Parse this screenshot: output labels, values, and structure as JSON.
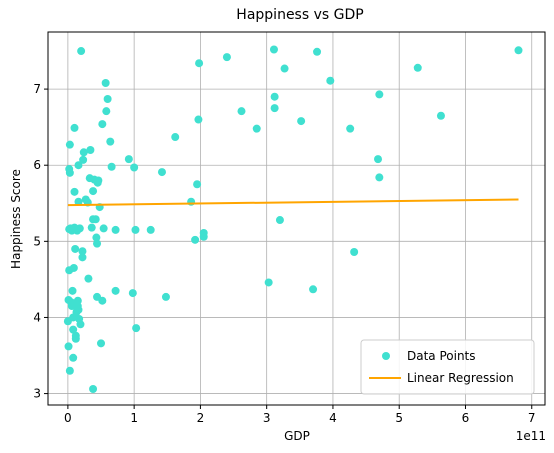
{
  "chart_data": {
    "type": "scatter",
    "title": "Happiness vs GDP",
    "xlabel": "GDP",
    "ylabel": "Happiness Score",
    "x_multiplier_label": "1e11",
    "xlim": [
      -30000000000.0,
      720000000000.0
    ],
    "ylim": [
      2.85,
      7.75
    ],
    "x_ticks": [
      0,
      1,
      2,
      3,
      4,
      5,
      6,
      7
    ],
    "x_tick_values": [
      0,
      100000000000.0,
      200000000000.0,
      300000000000.0,
      400000000000.0,
      500000000000.0,
      600000000000.0,
      700000000000.0
    ],
    "y_ticks": [
      3,
      4,
      5,
      6,
      7
    ],
    "grid": true,
    "legend_position": "lower-right",
    "colors": {
      "points": "#40e0d0",
      "line": "#ffa500",
      "grid": "#b0b0b0"
    },
    "series": [
      {
        "name": "Data Points",
        "kind": "scatter",
        "points": [
          [
            0.0,
            3.95
          ],
          [
            1000000000.0,
            4.23
          ],
          [
            1000000000.0,
            3.62
          ],
          [
            2000000000.0,
            4.62
          ],
          [
            2000000000.0,
            5.95
          ],
          [
            2000000000.0,
            5.16
          ],
          [
            3000000000.0,
            6.27
          ],
          [
            3000000000.0,
            5.9
          ],
          [
            3000000000.0,
            3.3
          ],
          [
            4000000000.0,
            5.17
          ],
          [
            5000000000.0,
            4.2
          ],
          [
            6000000000.0,
            4.15
          ],
          [
            6000000000.0,
            5.14
          ],
          [
            7000000000.0,
            4.35
          ],
          [
            8000000000.0,
            4.0
          ],
          [
            8000000000.0,
            3.84
          ],
          [
            8000000000.0,
            3.47
          ],
          [
            9000000000.0,
            4.65
          ],
          [
            10000000000.0,
            6.49
          ],
          [
            10000000000.0,
            5.65
          ],
          [
            10000000000.0,
            5.18
          ],
          [
            11000000000.0,
            4.9
          ],
          [
            12000000000.0,
            3.76
          ],
          [
            12000000000.0,
            3.72
          ],
          [
            13000000000.0,
            4.07
          ],
          [
            14000000000.0,
            5.14
          ],
          [
            15000000000.0,
            4.22
          ],
          [
            15000000000.0,
            4.15
          ],
          [
            16000000000.0,
            4.1
          ],
          [
            16000000000.0,
            5.52
          ],
          [
            16000000000.0,
            6.0
          ],
          [
            17000000000.0,
            3.98
          ],
          [
            18000000000.0,
            5.17
          ],
          [
            19000000000.0,
            3.91
          ],
          [
            20000000000.0,
            7.5
          ],
          [
            22000000000.0,
            4.79
          ],
          [
            22000000000.0,
            4.87
          ],
          [
            23000000000.0,
            6.07
          ],
          [
            24000000000.0,
            6.17
          ],
          [
            27000000000.0,
            5.55
          ],
          [
            30000000000.0,
            5.51
          ],
          [
            31000000000.0,
            4.51
          ],
          [
            33000000000.0,
            5.83
          ],
          [
            34000000000.0,
            6.2
          ],
          [
            36000000000.0,
            5.18
          ],
          [
            38000000000.0,
            5.66
          ],
          [
            38000000000.0,
            5.29
          ],
          [
            38000000000.0,
            3.06
          ],
          [
            40000000000.0,
            5.81
          ],
          [
            42000000000.0,
            5.29
          ],
          [
            43000000000.0,
            5.05
          ],
          [
            44000000000.0,
            4.97
          ],
          [
            44000000000.0,
            4.27
          ],
          [
            45000000000.0,
            5.77
          ],
          [
            46000000000.0,
            5.8
          ],
          [
            48000000000.0,
            5.45
          ],
          [
            50000000000.0,
            3.66
          ],
          [
            52000000000.0,
            4.22
          ],
          [
            52000000000.0,
            6.54
          ],
          [
            54000000000.0,
            5.17
          ],
          [
            57000000000.0,
            7.08
          ],
          [
            58000000000.0,
            6.71
          ],
          [
            60000000000.0,
            6.87
          ],
          [
            64000000000.0,
            6.31
          ],
          [
            66000000000.0,
            5.98
          ],
          [
            72000000000.0,
            5.15
          ],
          [
            72000000000.0,
            4.35
          ],
          [
            92000000000.0,
            6.08
          ],
          [
            98000000000.0,
            4.32
          ],
          [
            100000000000.0,
            5.97
          ],
          [
            102000000000.0,
            5.15
          ],
          [
            103000000000.0,
            3.86
          ],
          [
            125000000000.0,
            5.15
          ],
          [
            142000000000.0,
            5.91
          ],
          [
            148000000000.0,
            4.27
          ],
          [
            162000000000.0,
            6.37
          ],
          [
            186000000000.0,
            5.52
          ],
          [
            192000000000.0,
            5.02
          ],
          [
            195000000000.0,
            5.75
          ],
          [
            197000000000.0,
            6.6
          ],
          [
            198000000000.0,
            7.34
          ],
          [
            205000000000.0,
            5.11
          ],
          [
            205000000000.0,
            5.06
          ],
          [
            240000000000.0,
            7.42
          ],
          [
            262000000000.0,
            6.71
          ],
          [
            285000000000.0,
            6.48
          ],
          [
            303000000000.0,
            4.46
          ],
          [
            311000000000.0,
            7.52
          ],
          [
            312000000000.0,
            6.9
          ],
          [
            312000000000.0,
            6.75
          ],
          [
            320000000000.0,
            5.28
          ],
          [
            327000000000.0,
            7.27
          ],
          [
            352000000000.0,
            6.58
          ],
          [
            370000000000.0,
            4.37
          ],
          [
            376000000000.0,
            7.49
          ],
          [
            396000000000.0,
            7.11
          ],
          [
            426000000000.0,
            6.48
          ],
          [
            432000000000.0,
            4.86
          ],
          [
            468000000000.0,
            6.08
          ],
          [
            470000000000.0,
            5.84
          ],
          [
            470000000000.0,
            6.93
          ],
          [
            528000000000.0,
            7.28
          ],
          [
            563000000000.0,
            6.65
          ],
          [
            680000000000.0,
            7.51
          ]
        ]
      },
      {
        "name": "Linear Regression",
        "kind": "line",
        "points": [
          [
            0.0,
            5.475
          ],
          [
            680000000000.0,
            5.55
          ]
        ]
      }
    ]
  }
}
